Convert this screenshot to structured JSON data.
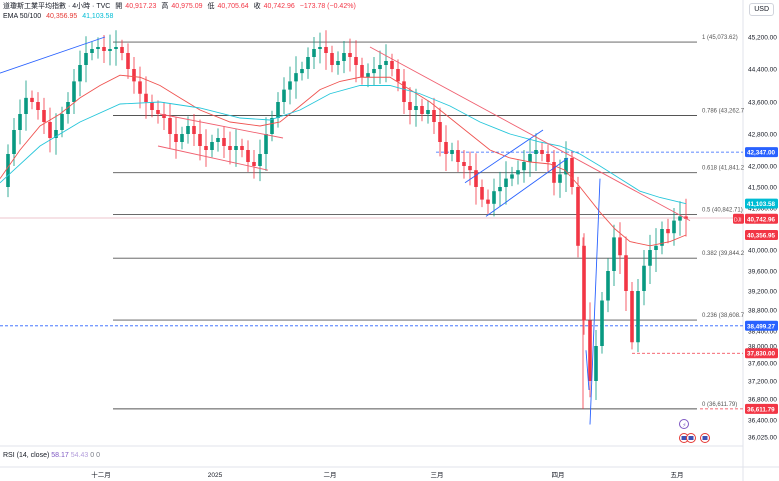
{
  "header": {
    "symbol": "道瓊斯工業平均指數 · 4小時 · TVC",
    "open_label": "開",
    "open": "40,917.23",
    "high_label": "高",
    "high": "40,975.09",
    "low_label": "低",
    "low": "40,705.64",
    "close_label": "收",
    "close": "40,742.96",
    "change": "−173.78 (−0.42%)",
    "ema_label": "EMA 50/100",
    "ema50": "40,356.95",
    "ema100": "41,103.58"
  },
  "currency": "USD",
  "rsi": {
    "label": "RSI (14, close)",
    "value": "58.17",
    "ma": "54.43",
    "z1": "0",
    "z2": "0"
  },
  "colors": {
    "up": "#089981",
    "down": "#f23645",
    "ema50": "#ef5350",
    "ema100": "#26c6da",
    "trendline_blue": "#2962ff",
    "trendline_red": "#f06070",
    "fib": "#555555"
  },
  "chart_data": {
    "type": "candlestick",
    "y_axis": {
      "min": 36025,
      "max": 45200,
      "ticks": [
        "45,200.00",
        "44,400.00",
        "43,600.00",
        "42,800.00",
        "42,000.00",
        "41,500.00",
        "41,000.00",
        "40,000.00",
        "39,600.00",
        "39,200.00",
        "38,800.00",
        "38,400.00",
        "38,000.00",
        "37,600.00",
        "37,200.00",
        "36,800.00",
        "36,400.00",
        "36,025.00"
      ]
    },
    "x_axis": {
      "labels": [
        "十二月",
        "2025",
        "二月",
        "三月",
        "四月",
        "五月"
      ]
    },
    "fibonacci": [
      {
        "level": "1",
        "value": 45073.62,
        "label": "1 (45,073.62)"
      },
      {
        "level": "0.786",
        "value": 43262.7,
        "label": "0.786 (43,262.7"
      },
      {
        "level": "0.618",
        "value": 41841.2,
        "label": "0.618 (41,841.2"
      },
      {
        "level": "0.5",
        "value": 40842.71,
        "label": "0.5 (40,842.71)"
      },
      {
        "level": "0.382",
        "value": 39844.2,
        "label": "0.382 (39,844.2"
      },
      {
        "level": "0.236",
        "value": 38608.7,
        "label": "0.236 (38,608.7"
      },
      {
        "level": "0",
        "value": 36611.79,
        "label": "0 (36,611.79)"
      }
    ],
    "price_tags": [
      {
        "value": 42347.0,
        "label": "42,347.00",
        "color": "#2962ff"
      },
      {
        "value": 41103.58,
        "label": "41,103.58",
        "color": "#00bcd4"
      },
      {
        "value": 40742.96,
        "label": "40,742.96",
        "color": "#f23645",
        "prefix": "DJI"
      },
      {
        "value": 40356.95,
        "label": "40,356.95",
        "color": "#f23645"
      },
      {
        "value": 38499.27,
        "label": "38,499.27",
        "color": "#2962ff"
      },
      {
        "value": 37830.0,
        "label": "37,830.00",
        "color": "#f23645"
      },
      {
        "value": 36611.79,
        "label": "36,611.79",
        "color": "#f23645"
      }
    ]
  }
}
